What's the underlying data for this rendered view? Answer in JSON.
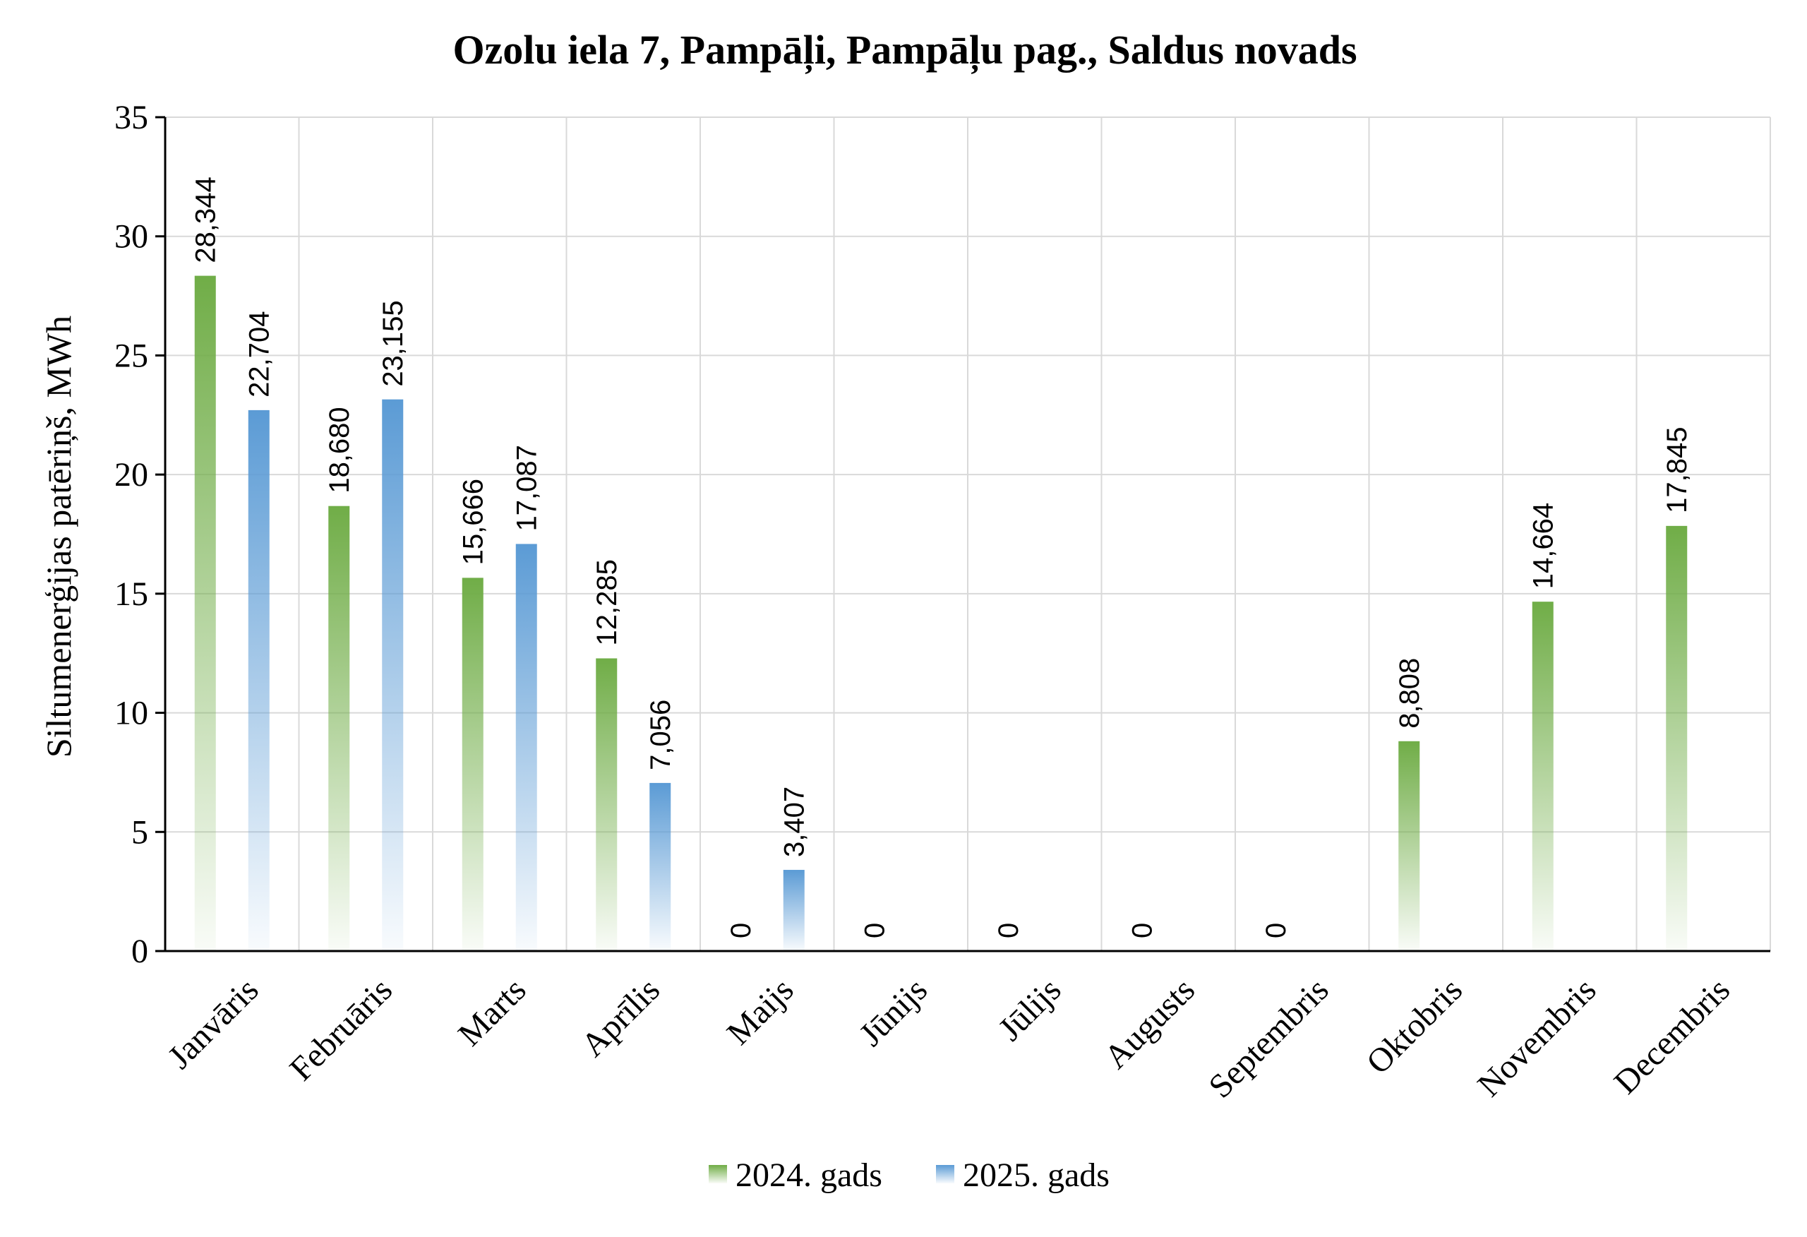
{
  "chart_data": {
    "type": "bar",
    "title": "Ozolu iela 7, Pampāļi, Pampāļu pag., Saldus novads",
    "xlabel": "",
    "ylabel": "Siltumenerģijas patēriņš, MWh",
    "ylim": [
      0,
      35
    ],
    "yticks": [
      0,
      5,
      10,
      15,
      20,
      25,
      30,
      35
    ],
    "grid": true,
    "legend_position": "bottom",
    "categories": [
      "Janvāris",
      "Februāris",
      "Marts",
      "Aprīlis",
      "Maijs",
      "Jūnijs",
      "Jūlijs",
      "Augusts",
      "Septembris",
      "Oktobris",
      "Novembris",
      "Decembris"
    ],
    "series": [
      {
        "name": "2024. gads",
        "color": "#70ad47",
        "values": [
          28.344,
          18.68,
          15.666,
          12.285,
          0,
          0,
          0,
          0,
          0,
          8.808,
          14.664,
          17.845
        ],
        "labels": [
          "28,344",
          "18,680",
          "15,666",
          "12,285",
          "0",
          "0",
          "0",
          "0",
          "0",
          "8,808",
          "14,664",
          "17,845"
        ]
      },
      {
        "name": "2025. gads",
        "color": "#5b9bd5",
        "values": [
          22.704,
          23.155,
          17.087,
          7.056,
          3.407,
          null,
          null,
          null,
          null,
          null,
          null,
          null
        ],
        "labels": [
          "22,704",
          "23,155",
          "17,087",
          "7,056",
          "3,407",
          "",
          "",
          "",
          "",
          "",
          "",
          ""
        ]
      }
    ]
  }
}
